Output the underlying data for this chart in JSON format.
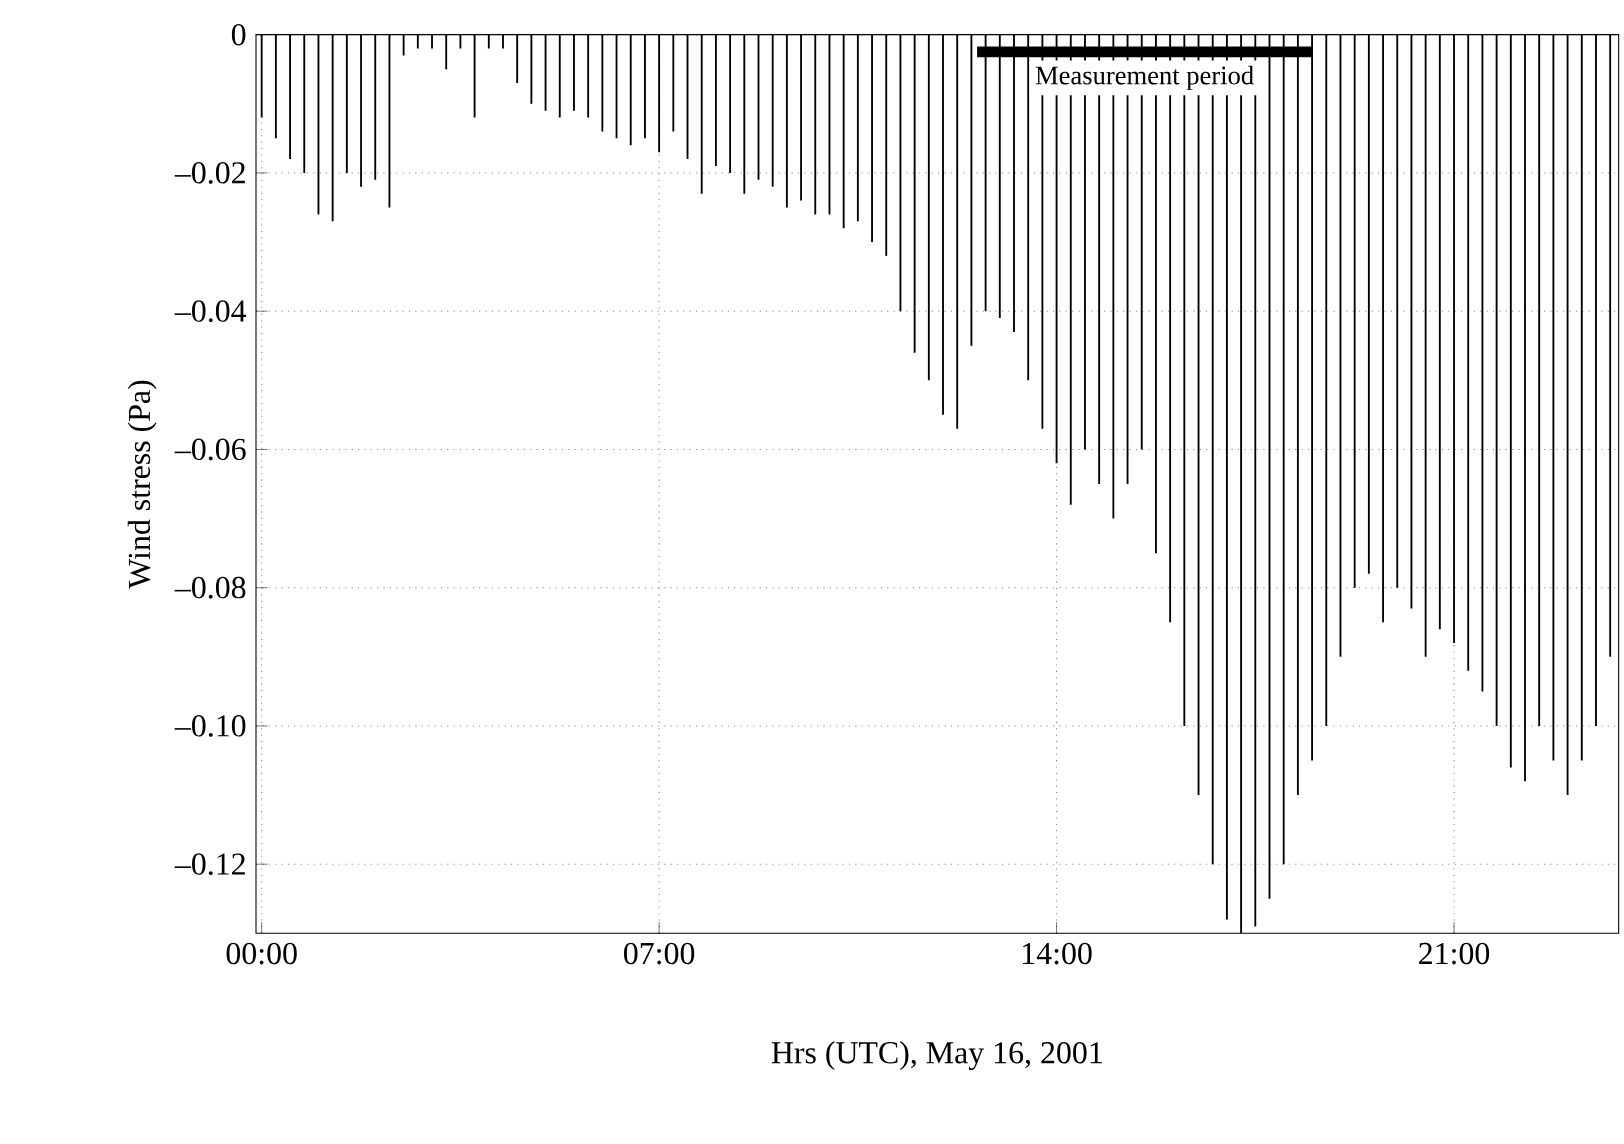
{
  "chart_data": {
    "type": "bar",
    "xlabel": "Hrs (UTC), May 16, 2001",
    "ylabel": "Wind stress (Pa)",
    "series": [
      {
        "type": "line",
        "color": "#000000",
        "x": [
          12.6,
          18.5
        ],
        "values": [
          -0.0025,
          -0.0025
        ]
      },
      {
        "color": "#000000",
        "x": [
          0,
          0.25,
          0.5,
          0.75,
          1,
          1.25,
          1.5,
          1.75,
          2,
          2.25,
          2.5,
          2.75,
          3,
          3.25,
          3.5,
          3.75,
          4,
          4.25,
          4.5,
          4.75,
          5,
          5.25,
          5.5,
          5.75,
          6,
          6.25,
          6.5,
          6.75,
          7,
          7.25,
          7.5,
          7.75,
          8,
          8.25,
          8.5,
          8.75,
          9,
          9.25,
          9.5,
          9.75,
          10,
          10.25,
          10.5,
          10.75,
          11,
          11.25,
          11.5,
          11.75,
          12,
          12.25,
          12.5,
          12.75,
          13,
          13.25,
          13.5,
          13.75,
          14,
          14.25,
          14.5,
          14.75,
          15,
          15.25,
          15.5,
          15.75,
          16,
          16.25,
          16.5,
          16.75,
          17,
          17.25,
          17.5,
          17.75,
          18,
          18.25,
          18.5,
          18.75,
          19,
          19.25,
          19.5,
          19.75,
          20,
          20.25,
          20.5,
          20.75,
          21,
          21.25,
          21.5,
          21.75,
          22,
          22.25,
          22.5,
          22.75,
          23,
          23.25,
          23.5,
          23.75
        ],
        "values": [
          -0.012,
          -0.015,
          -0.018,
          -0.02,
          -0.026,
          -0.027,
          -0.02,
          -0.022,
          -0.021,
          -0.025,
          -0.003,
          -0.002,
          -0.002,
          -0.005,
          -0.002,
          -0.012,
          -0.002,
          -0.002,
          -0.007,
          -0.01,
          -0.011,
          -0.012,
          -0.011,
          -0.012,
          -0.014,
          -0.015,
          -0.016,
          -0.015,
          -0.017,
          -0.014,
          -0.018,
          -0.023,
          -0.019,
          -0.02,
          -0.023,
          -0.021,
          -0.022,
          -0.025,
          -0.024,
          -0.026,
          -0.026,
          -0.028,
          -0.027,
          -0.03,
          -0.032,
          -0.04,
          -0.046,
          -0.05,
          -0.055,
          -0.057,
          -0.045,
          -0.04,
          -0.041,
          -0.043,
          -0.05,
          -0.057,
          -0.062,
          -0.068,
          -0.06,
          -0.065,
          -0.07,
          -0.065,
          -0.06,
          -0.075,
          -0.085,
          -0.1,
          -0.11,
          -0.12,
          -0.128,
          -0.13,
          -0.129,
          -0.125,
          -0.12,
          -0.11,
          -0.105,
          -0.1,
          -0.09,
          -0.08,
          -0.078,
          -0.085,
          -0.08,
          -0.083,
          -0.09,
          -0.086,
          -0.088,
          -0.092,
          -0.095,
          -0.1,
          -0.106,
          -0.108,
          -0.1,
          -0.105,
          -0.11,
          -0.105,
          -0.1,
          -0.09
        ]
      }
    ],
    "xlim": [
      -0.1,
      23.9
    ],
    "ylim": [
      -0.13,
      0
    ],
    "xticks": [
      {
        "value": 0,
        "label": "00:00"
      },
      {
        "value": 7,
        "label": "07:00"
      },
      {
        "value": 14,
        "label": "14:00"
      },
      {
        "value": 21,
        "label": "21:00"
      }
    ],
    "yticks": [
      {
        "value": -0.12,
        "label": "–0.12"
      },
      {
        "value": -0.1,
        "label": "–0.10"
      },
      {
        "value": -0.08,
        "label": "–0.08"
      },
      {
        "value": -0.06,
        "label": "–0.06"
      },
      {
        "value": -0.04,
        "label": "–0.04"
      },
      {
        "value": -0.02,
        "label": "–0.02"
      },
      0
    ],
    "grid": true,
    "annotations": [
      {
        "text": "Measurement period",
        "x": 15.55,
        "y": -0.0025
      }
    ]
  }
}
